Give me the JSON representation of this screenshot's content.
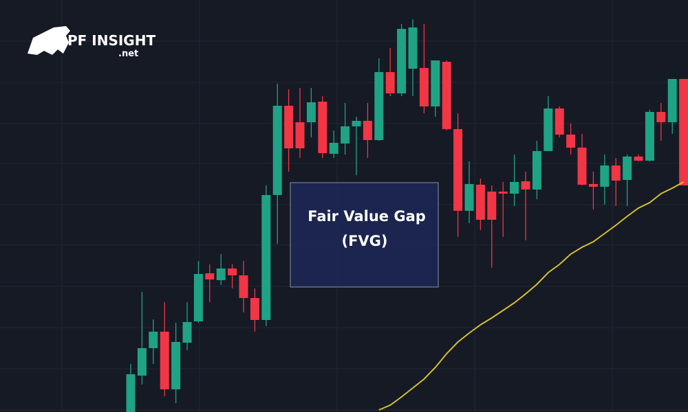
{
  "logo": {
    "name": "PF INSIGHT",
    "domain": ".net"
  },
  "chart_data": {
    "type": "candlestick",
    "annotation": [
      "Fair Value Gap",
      "(FVG)"
    ],
    "ylim": [
      0,
      600
    ],
    "up_color": "#1fa385",
    "down_color": "#f23645",
    "open": [
      0,
      53,
      93,
      117,
      33,
      101,
      132,
      202,
      192,
      209,
      199,
      166,
      134,
      316,
      446,
      422,
      422,
      452,
      376,
      391,
      416,
      424,
      396,
      495,
      464,
      500,
      501,
      445,
      510,
      412,
      293,
      331,
      321,
      321,
      318,
      336,
      324,
      380,
      442,
      404,
      385,
      332,
      328,
      359,
      338,
      372,
      366,
      437,
      422,
      485
    ],
    "high": [
      70,
      175,
      135,
      160,
      130,
      160,
      220,
      215,
      230,
      215,
      220,
      180,
      330,
      478,
      470,
      472,
      472,
      460,
      410,
      450,
      430,
      450,
      515,
      530,
      565,
      572,
      565,
      512,
      512,
      435,
      365,
      340,
      330,
      335,
      375,
      350,
      395,
      460,
      445,
      420,
      405,
      350,
      375,
      370,
      375,
      375,
      440,
      450,
      485,
      485
    ],
    "low": [
      0,
      40,
      70,
      23,
      13,
      90,
      130,
      160,
      185,
      180,
      145,
      117,
      125,
      245,
      350,
      370,
      400,
      370,
      370,
      375,
      345,
      370,
      395,
      460,
      460,
      460,
      435,
      430,
      410,
      255,
      275,
      265,
      210,
      255,
      300,
      250,
      310,
      380,
      400,
      375,
      330,
      295,
      302,
      300,
      300,
      365,
      365,
      395,
      405,
      330
    ],
    "close": [
      55,
      93,
      117,
      33,
      102,
      131,
      201,
      193,
      209,
      199,
      166,
      134,
      316,
      446,
      384,
      384,
      451,
      377,
      392,
      416,
      424,
      396,
      495,
      464,
      558,
      560,
      445,
      512,
      412,
      293,
      332,
      280,
      280,
      318,
      335,
      324,
      380,
      442,
      404,
      385,
      331,
      328,
      359,
      337,
      372,
      366,
      437,
      422,
      485,
      330
    ],
    "line": {
      "color": "#d4c22a",
      "values": [
        null,
        null,
        null,
        null,
        null,
        null,
        null,
        null,
        null,
        null,
        null,
        null,
        null,
        null,
        null,
        null,
        null,
        null,
        null,
        null,
        null,
        null,
        3,
        10,
        22,
        35,
        48,
        65,
        85,
        102,
        115,
        127,
        137,
        148,
        159,
        172,
        186,
        203,
        215,
        230,
        240,
        248,
        260,
        272,
        285,
        297,
        305,
        318,
        326,
        335
      ]
    }
  }
}
